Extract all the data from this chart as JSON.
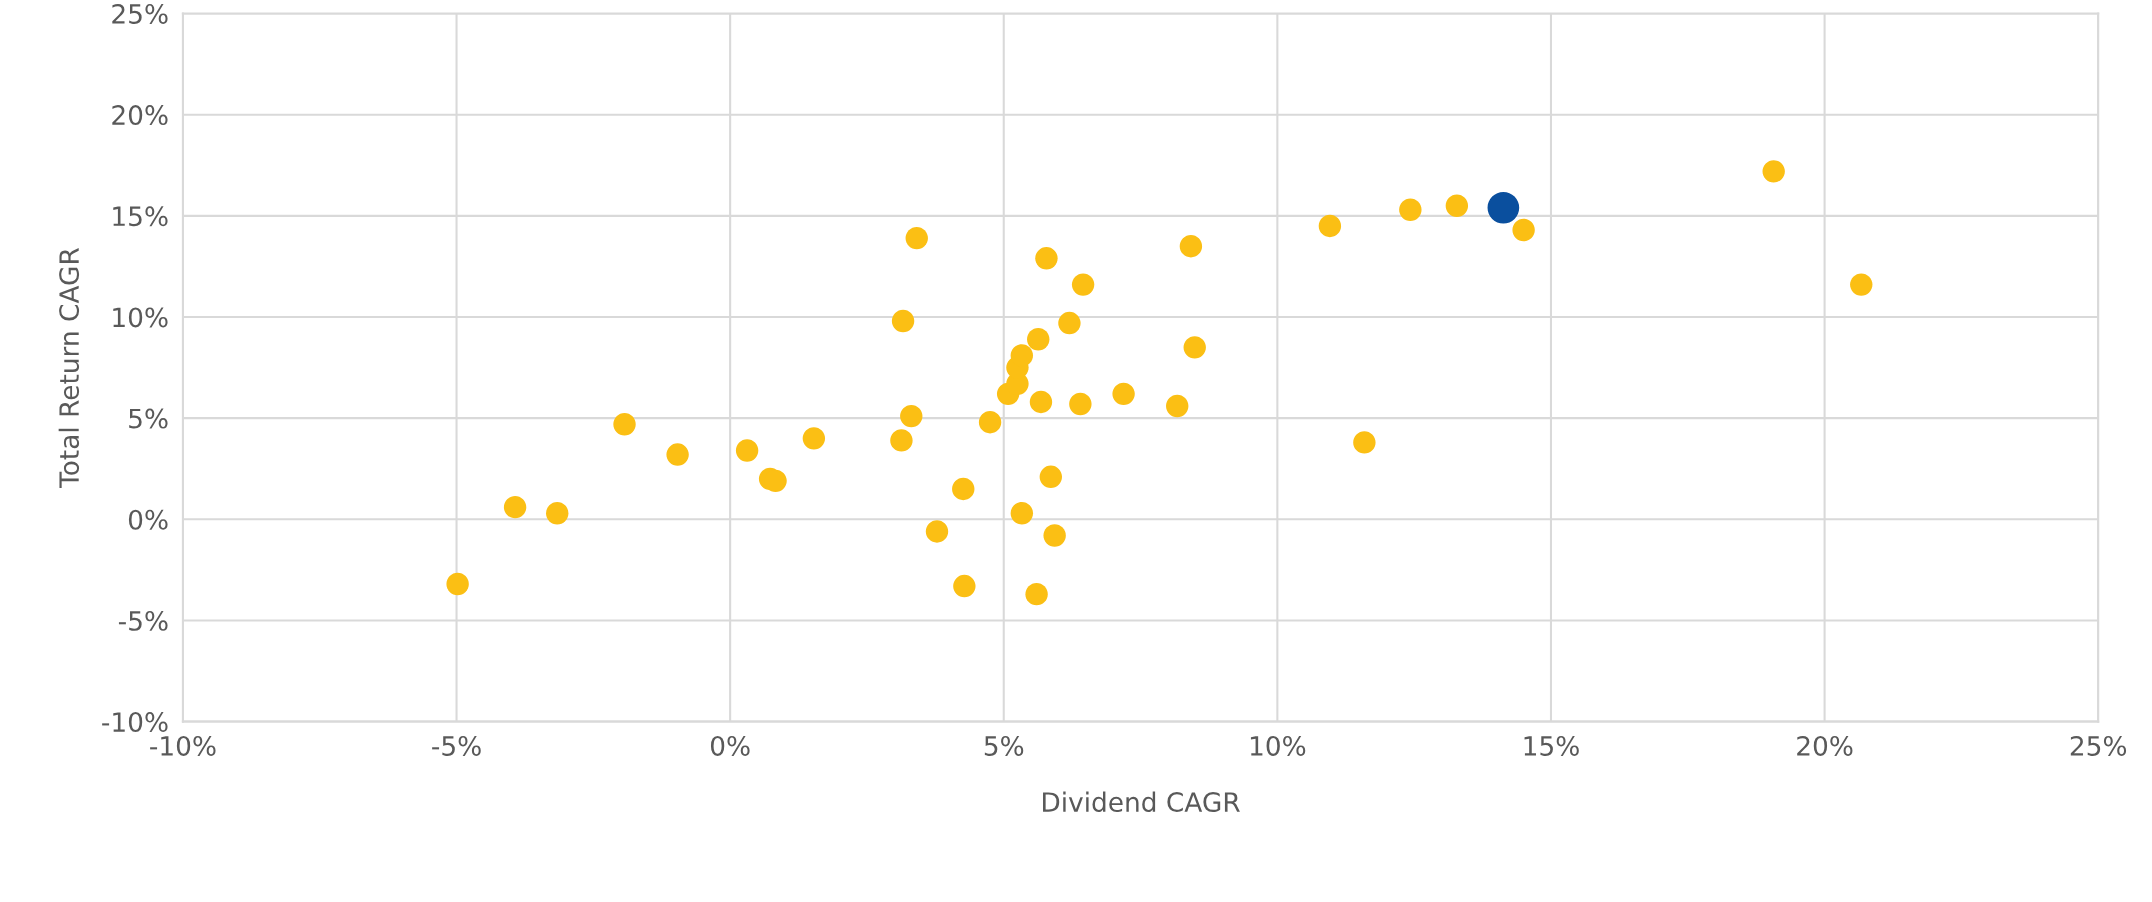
{
  "chart_data": {
    "type": "scatter",
    "xlabel": "Dividend CAGR",
    "ylabel": "Total Return CAGR",
    "xlim": [
      -10,
      25
    ],
    "ylim": [
      -10,
      25
    ],
    "xticks": [
      {
        "value": -10,
        "label": "-10%"
      },
      {
        "value": -5,
        "label": "-5%"
      },
      {
        "value": 0,
        "label": "0%"
      },
      {
        "value": 5,
        "label": "5%"
      },
      {
        "value": 10,
        "label": "10%"
      },
      {
        "value": 15,
        "label": "15%"
      },
      {
        "value": 20,
        "label": "20%"
      },
      {
        "value": 25,
        "label": "25%"
      }
    ],
    "yticks": [
      {
        "value": -10,
        "label": "-10%"
      },
      {
        "value": -5,
        "label": "-5%"
      },
      {
        "value": 0,
        "label": "0%"
      },
      {
        "value": 5,
        "label": "5%"
      },
      {
        "value": 10,
        "label": "10%"
      },
      {
        "value": 15,
        "label": "15%"
      },
      {
        "value": 20,
        "label": "20%"
      },
      {
        "value": 25,
        "label": "25%"
      }
    ],
    "grid": true,
    "marker": "circle",
    "series": [
      {
        "color": "#fbbf14",
        "x": [
          -4.98,
          -3.93,
          -3.16,
          -1.93,
          -0.96,
          0.31,
          0.73,
          0.83,
          1.53,
          3.13,
          3.16,
          3.31,
          3.41,
          3.78,
          4.26,
          4.28,
          4.75,
          5.08,
          5.25,
          5.25,
          5.33,
          5.33,
          5.6,
          5.63,
          5.68,
          5.78,
          5.86,
          5.93,
          6.2,
          6.4,
          6.45,
          7.19,
          8.17,
          8.42,
          8.49,
          10.96,
          11.59,
          12.43,
          13.28,
          14.5,
          19.07,
          20.67
        ],
        "values": [
          -3.2,
          0.6,
          0.3,
          4.7,
          3.2,
          3.4,
          2.0,
          1.9,
          4.0,
          3.9,
          9.8,
          5.1,
          13.9,
          -0.6,
          1.5,
          -3.3,
          4.8,
          6.2,
          6.7,
          7.5,
          8.1,
          0.3,
          -3.7,
          8.9,
          5.8,
          12.9,
          2.1,
          -0.8,
          9.7,
          5.7,
          11.6,
          6.2,
          5.6,
          13.5,
          8.5,
          14.5,
          3.8,
          15.3,
          15.5,
          14.3,
          17.2,
          11.6
        ]
      },
      {
        "color": "#0a4f9e",
        "x": [
          14.13
        ],
        "values": [
          15.4
        ]
      }
    ]
  }
}
